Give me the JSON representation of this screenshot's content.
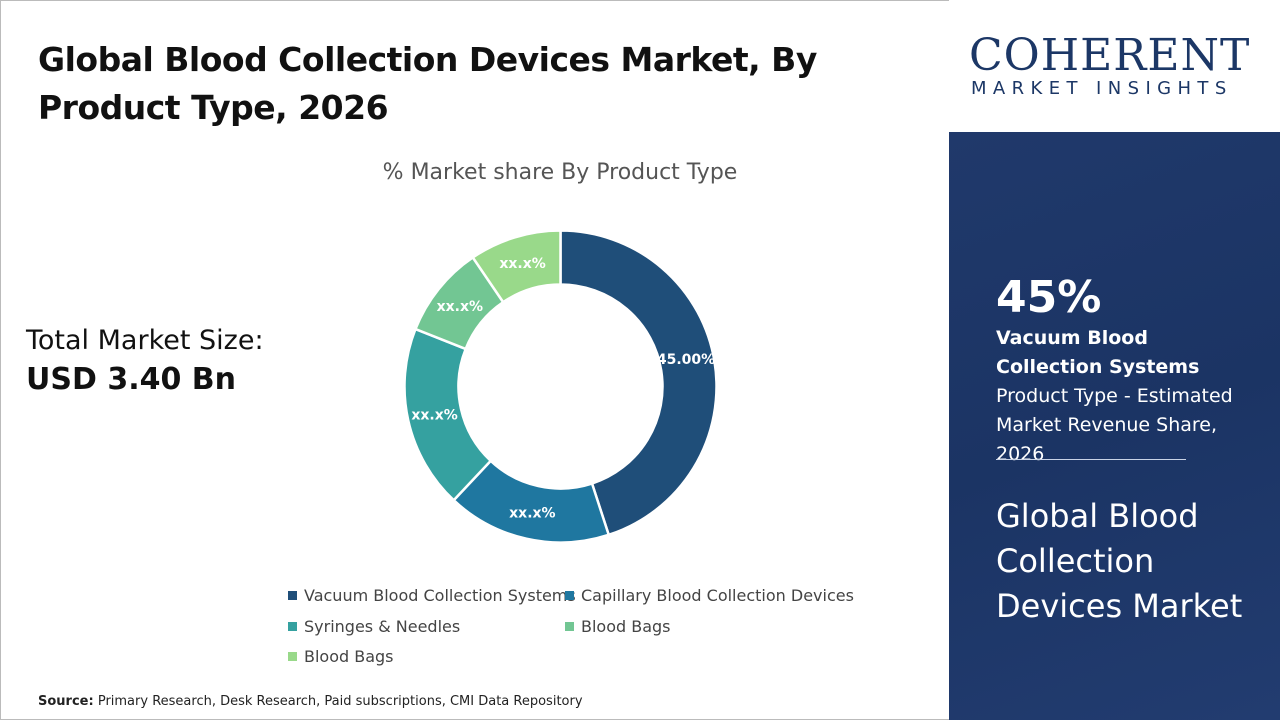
{
  "title": "Global Blood Collection Devices Market, By Product Type, 2026",
  "total_market": {
    "label": "Total Market Size:",
    "value": "USD 3.40 Bn"
  },
  "source": {
    "label": "Source:",
    "text": "Primary Research, Desk Research, Paid subscriptions, CMI Data Repository"
  },
  "logo": {
    "main": "COHERENT",
    "sub": "MARKET INSIGHTS"
  },
  "highlight": {
    "big": "45%",
    "bold": "Vacuum Blood Collection Systems",
    "rest": " Product Type - Estimated Market Revenue Share, 2026",
    "market_name": "Global Blood Collection Devices Market"
  },
  "chart_data": {
    "type": "pie",
    "donut": true,
    "title": "% Market share By Product Type",
    "categories": [
      "Vacuum Blood Collection Systems",
      "Capillary Blood Collection Devices",
      "Syringes & Needles",
      "Blood Bags",
      "Blood Bags"
    ],
    "values": [
      45,
      17,
      19,
      9.5,
      9.5
    ],
    "data_labels": [
      "45.00%",
      "xx.x%",
      "xx.x%",
      "xx.x%",
      "xx.x%"
    ],
    "colors": [
      "#1f4e79",
      "#1f77a0",
      "#35a1a0",
      "#72c693",
      "#99d98a"
    ],
    "legend_position": "bottom"
  }
}
